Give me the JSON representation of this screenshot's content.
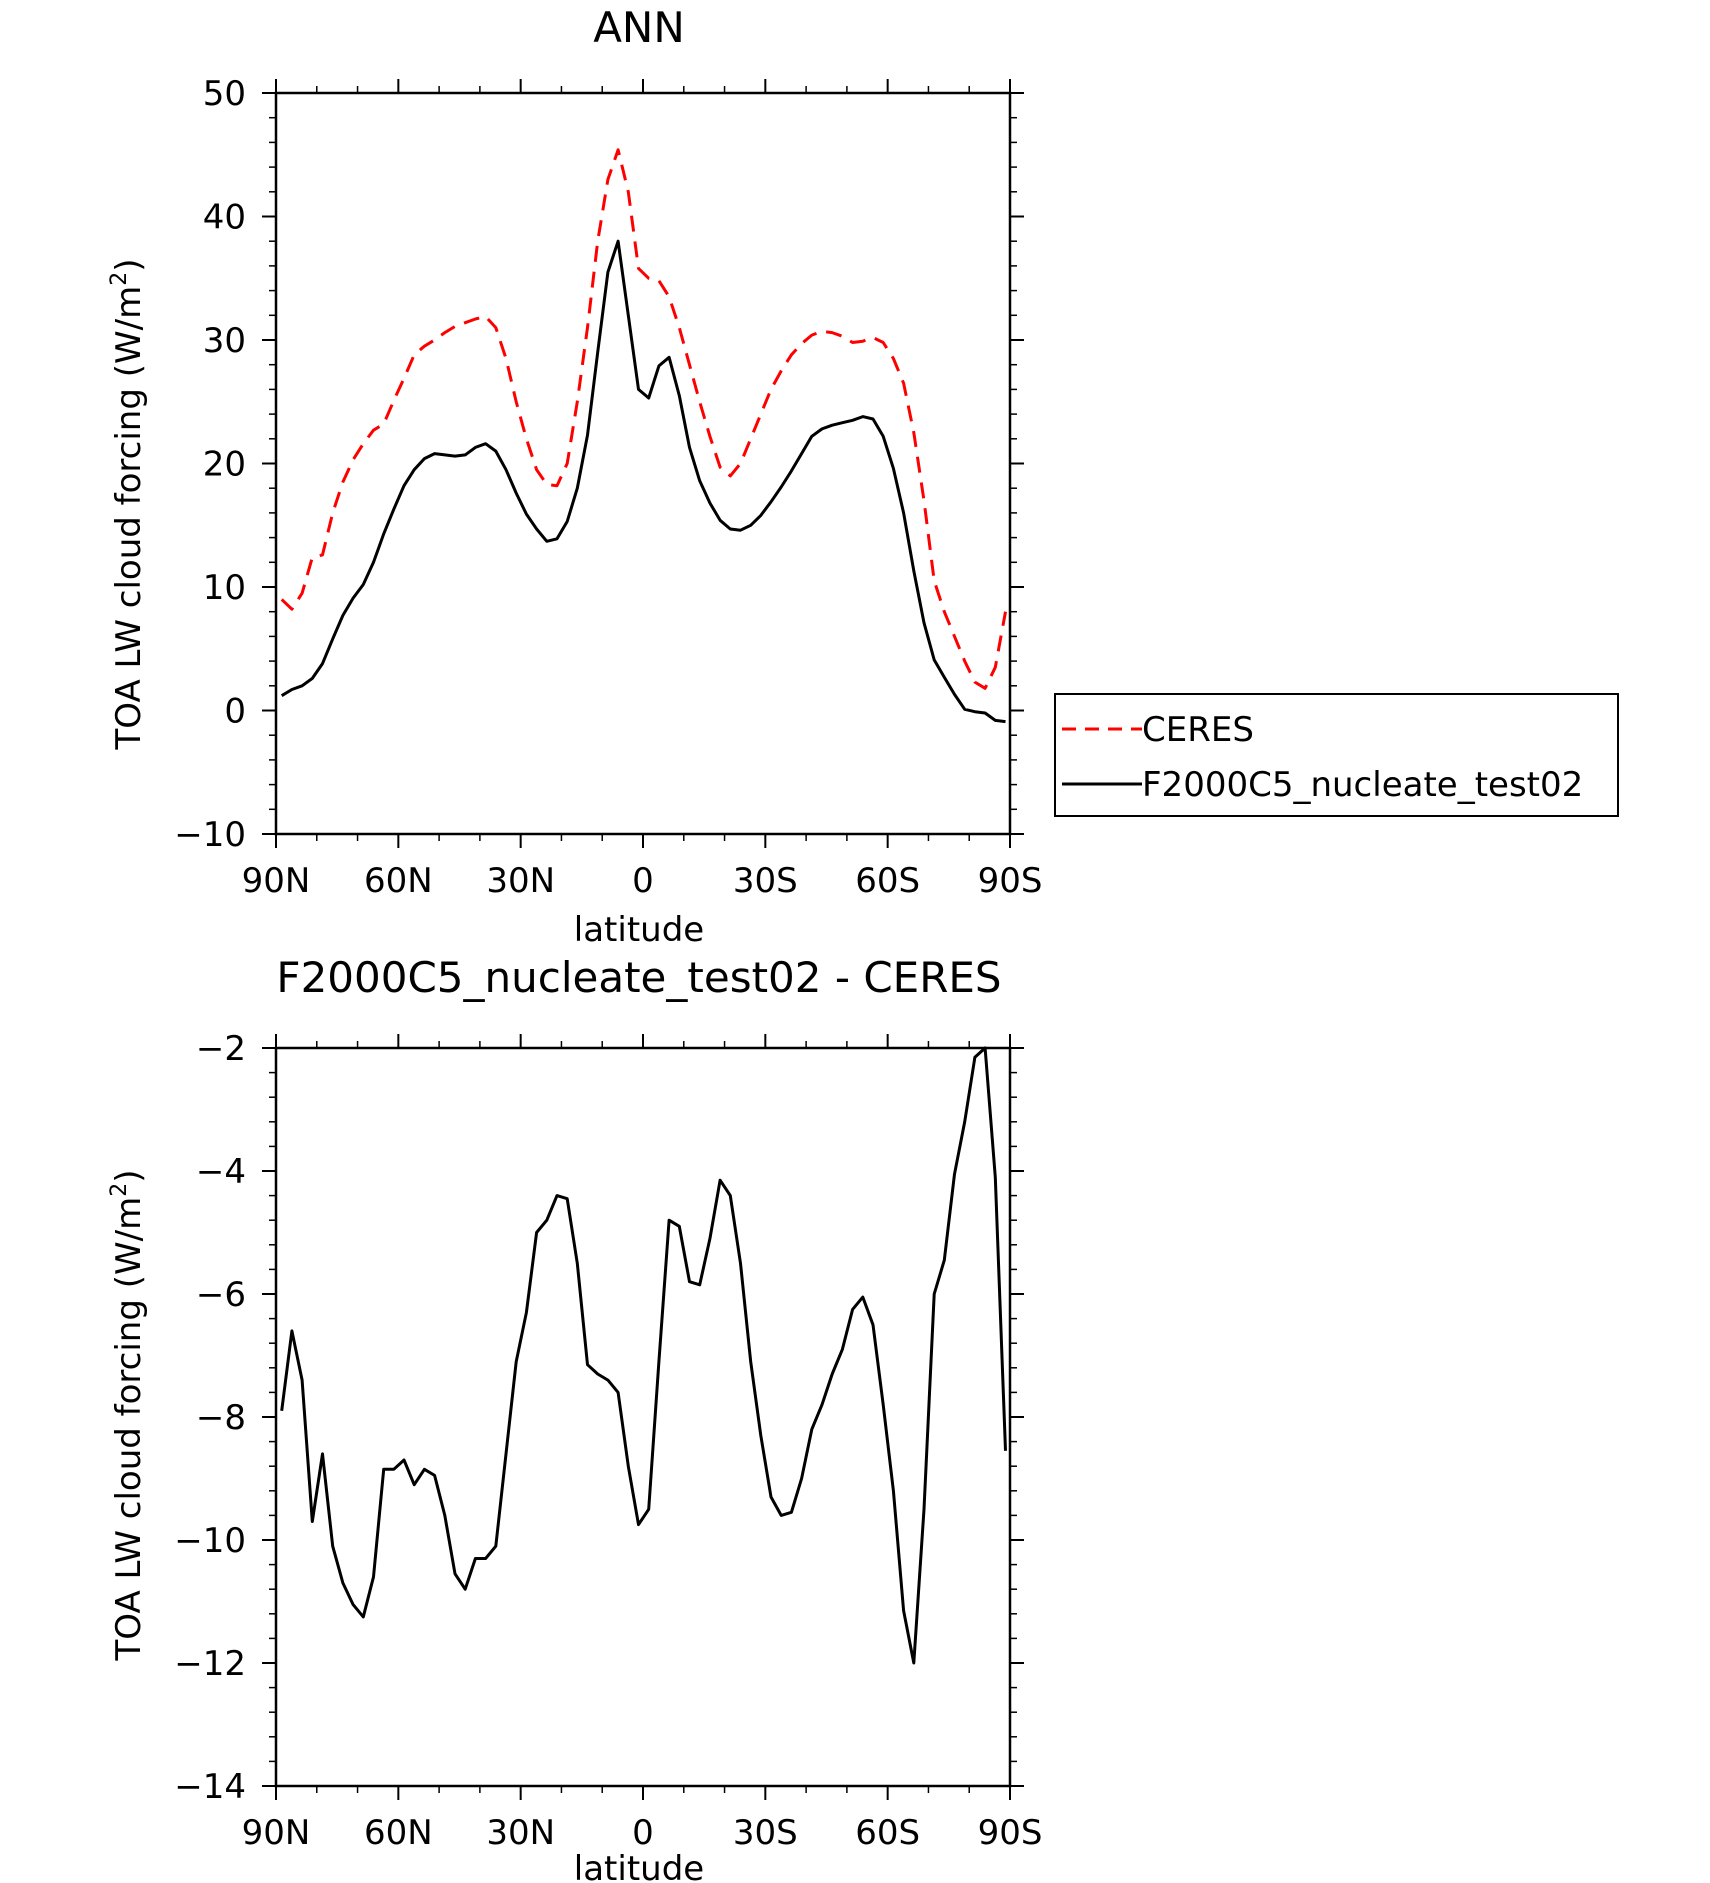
{
  "charts": [
    {
      "title": "ANN",
      "xlabel": "latitude",
      "ylabel_main": "TOA LW cloud forcing (W/m",
      "ylabel_sup": "2",
      "ylabel_close": ")"
    },
    {
      "title": "F2000C5_nucleate_test02 - CERES",
      "xlabel": "latitude",
      "ylabel_main": "TOA LW cloud forcing (W/m",
      "ylabel_sup": "2",
      "ylabel_close": ")"
    }
  ],
  "legend": {
    "items": [
      "CERES",
      "F2000C5_nucleate_test02"
    ]
  },
  "colors": {
    "ceres": "#ff0000",
    "model": "#000000",
    "axes": "#000000"
  },
  "chart_data": [
    {
      "type": "line",
      "title": "ANN",
      "xlabel": "latitude",
      "ylabel": "TOA LW cloud forcing (W/m2)",
      "xlim": [
        90,
        -90
      ],
      "ylim": [
        -10,
        50
      ],
      "xticks": [
        90,
        60,
        30,
        0,
        -30,
        -60,
        -90
      ],
      "xtick_labels": [
        "90N",
        "60N",
        "30N",
        "0",
        "30S",
        "60S",
        "90S"
      ],
      "yticks": [
        -10,
        0,
        10,
        20,
        30,
        40,
        50
      ],
      "ytick_labels": [
        "-10",
        "0",
        "10",
        "20",
        "30",
        "40",
        "50"
      ],
      "legend": "right",
      "series": [
        {
          "name": "CERES",
          "style": "dashed",
          "x": [
            88.6,
            86.1,
            83.6,
            81.1,
            78.6,
            76.1,
            73.6,
            71.1,
            68.6,
            66.1,
            63.6,
            61.1,
            58.6,
            56.1,
            53.6,
            51.1,
            48.6,
            46.1,
            43.6,
            41.1,
            38.6,
            36.1,
            33.6,
            31.1,
            28.6,
            26.1,
            23.6,
            21.1,
            18.6,
            16.1,
            13.6,
            11.1,
            8.6,
            6.1,
            3.6,
            1.1,
            -1.4,
            -3.9,
            -6.4,
            -8.9,
            -11.4,
            -13.9,
            -16.4,
            -18.9,
            -21.4,
            -23.9,
            -26.4,
            -28.9,
            -31.4,
            -33.9,
            -36.4,
            -38.9,
            -41.4,
            -43.9,
            -46.4,
            -48.9,
            -51.4,
            -53.9,
            -56.4,
            -58.9,
            -61.4,
            -63.9,
            -66.4,
            -68.9,
            -71.4,
            -73.9,
            -76.4,
            -78.9,
            -81.4,
            -83.9,
            -86.4,
            -88.9
          ],
          "values": [
            9.0,
            8.2,
            9.5,
            12.4,
            12.6,
            16.0,
            18.5,
            20.3,
            21.6,
            22.7,
            23.2,
            25.1,
            26.9,
            28.8,
            29.5,
            30.0,
            30.6,
            31.1,
            31.4,
            31.7,
            31.9,
            31.0,
            28.5,
            25.0,
            22.0,
            19.5,
            18.3,
            18.2,
            20.0,
            25.0,
            31.0,
            38.0,
            43.0,
            45.4,
            42.0,
            35.8,
            35.0,
            34.8,
            33.5,
            31.0,
            28.0,
            25.0,
            22.2,
            19.7,
            19.0,
            20.0,
            22.0,
            24.0,
            26.0,
            27.5,
            28.8,
            29.7,
            30.4,
            30.7,
            30.6,
            30.3,
            29.8,
            29.9,
            30.2,
            29.8,
            28.5,
            26.5,
            22.5,
            17.0,
            10.5,
            8.0,
            6.0,
            4.0,
            2.3,
            1.8,
            3.5,
            8.0
          ]
        },
        {
          "name": "F2000C5_nucleate_test02",
          "style": "solid",
          "x": [
            88.6,
            86.1,
            83.6,
            81.1,
            78.6,
            76.1,
            73.6,
            71.1,
            68.6,
            66.1,
            63.6,
            61.1,
            58.6,
            56.1,
            53.6,
            51.1,
            48.6,
            46.1,
            43.6,
            41.1,
            38.6,
            36.1,
            33.6,
            31.1,
            28.6,
            26.1,
            23.6,
            21.1,
            18.6,
            16.1,
            13.6,
            11.1,
            8.6,
            6.1,
            3.6,
            1.1,
            -1.4,
            -3.9,
            -6.4,
            -8.9,
            -11.4,
            -13.9,
            -16.4,
            -18.9,
            -21.4,
            -23.9,
            -26.4,
            -28.9,
            -31.4,
            -33.9,
            -36.4,
            -38.9,
            -41.4,
            -43.9,
            -46.4,
            -48.9,
            -51.4,
            -53.9,
            -56.4,
            -58.9,
            -61.4,
            -63.9,
            -66.4,
            -68.9,
            -71.4,
            -73.9,
            -76.4,
            -78.9,
            -81.4,
            -83.9,
            -86.4,
            -88.9
          ],
          "values": [
            1.2,
            1.7,
            2.0,
            2.6,
            3.8,
            5.8,
            7.7,
            9.1,
            10.2,
            12.0,
            14.3,
            16.3,
            18.2,
            19.5,
            20.4,
            20.8,
            20.7,
            20.6,
            20.7,
            21.3,
            21.6,
            21.0,
            19.5,
            17.6,
            15.9,
            14.7,
            13.7,
            13.9,
            15.3,
            18.0,
            22.3,
            29.0,
            35.5,
            38.0,
            32.0,
            26.0,
            25.3,
            27.9,
            28.6,
            25.5,
            21.3,
            18.6,
            16.8,
            15.4,
            14.7,
            14.6,
            15.0,
            15.8,
            16.9,
            18.1,
            19.4,
            20.8,
            22.2,
            22.8,
            23.1,
            23.3,
            23.5,
            23.8,
            23.6,
            22.2,
            19.6,
            16.0,
            11.3,
            7.1,
            4.1,
            2.7,
            1.3,
            0.1,
            -0.1,
            -0.2,
            -0.8,
            -0.9
          ]
        }
      ]
    },
    {
      "type": "line",
      "title": "F2000C5_nucleate_test02 - CERES",
      "xlabel": "latitude",
      "ylabel": "TOA LW cloud forcing (W/m2)",
      "xlim": [
        90,
        -90
      ],
      "ylim": [
        -14,
        -2
      ],
      "xticks": [
        90,
        60,
        30,
        0,
        -30,
        -60,
        -90
      ],
      "xtick_labels": [
        "90N",
        "60N",
        "30N",
        "0",
        "30S",
        "60S",
        "90S"
      ],
      "yticks": [
        -14,
        -12,
        -10,
        -8,
        -6,
        -4,
        -2
      ],
      "ytick_labels": [
        "-14",
        "-12",
        "-10",
        "-8",
        "-6",
        "-4",
        "-2"
      ],
      "series": [
        {
          "style": "solid",
          "x": [
            88.6,
            86.1,
            83.6,
            81.1,
            78.6,
            76.1,
            73.6,
            71.1,
            68.6,
            66.1,
            63.6,
            61.1,
            58.6,
            56.1,
            53.6,
            51.1,
            48.6,
            46.1,
            43.6,
            41.1,
            38.6,
            36.1,
            33.6,
            31.1,
            28.6,
            26.1,
            23.6,
            21.1,
            18.6,
            16.1,
            13.6,
            11.1,
            8.6,
            6.1,
            3.6,
            1.1,
            -1.4,
            -3.9,
            -6.4,
            -8.9,
            -11.4,
            -13.9,
            -16.4,
            -18.9,
            -21.4,
            -23.9,
            -26.4,
            -28.9,
            -31.4,
            -33.9,
            -36.4,
            -38.9,
            -41.4,
            -43.9,
            -46.4,
            -48.9,
            -51.4,
            -53.9,
            -56.4,
            -58.9,
            -61.4,
            -63.9,
            -66.4,
            -68.9,
            -71.4,
            -73.9,
            -76.4,
            -78.9,
            -81.4,
            -83.9,
            -86.4,
            -88.9
          ],
          "values": [
            -7.9,
            -6.6,
            -7.4,
            -9.7,
            -8.6,
            -10.1,
            -10.7,
            -11.05,
            -11.25,
            -10.6,
            -8.85,
            -8.85,
            -8.7,
            -9.1,
            -8.85,
            -8.95,
            -9.6,
            -10.55,
            -10.8,
            -10.3,
            -10.3,
            -10.1,
            -8.6,
            -7.1,
            -6.3,
            -5.0,
            -4.8,
            -4.4,
            -4.45,
            -5.5,
            -7.15,
            -7.3,
            -7.4,
            -7.6,
            -8.8,
            -9.75,
            -9.5,
            -7.1,
            -4.8,
            -4.9,
            -5.8,
            -5.85,
            -5.1,
            -4.15,
            -4.4,
            -5.5,
            -7.1,
            -8.3,
            -9.3,
            -9.6,
            -9.55,
            -9.0,
            -8.2,
            -7.8,
            -7.3,
            -6.9,
            -6.25,
            -6.05,
            -6.5,
            -7.8,
            -9.2,
            -11.15,
            -12.0,
            -9.5,
            -6.0,
            -5.45,
            -4.05,
            -3.2,
            -2.15,
            -2.0,
            -4.1,
            -8.55
          ]
        }
      ]
    }
  ]
}
